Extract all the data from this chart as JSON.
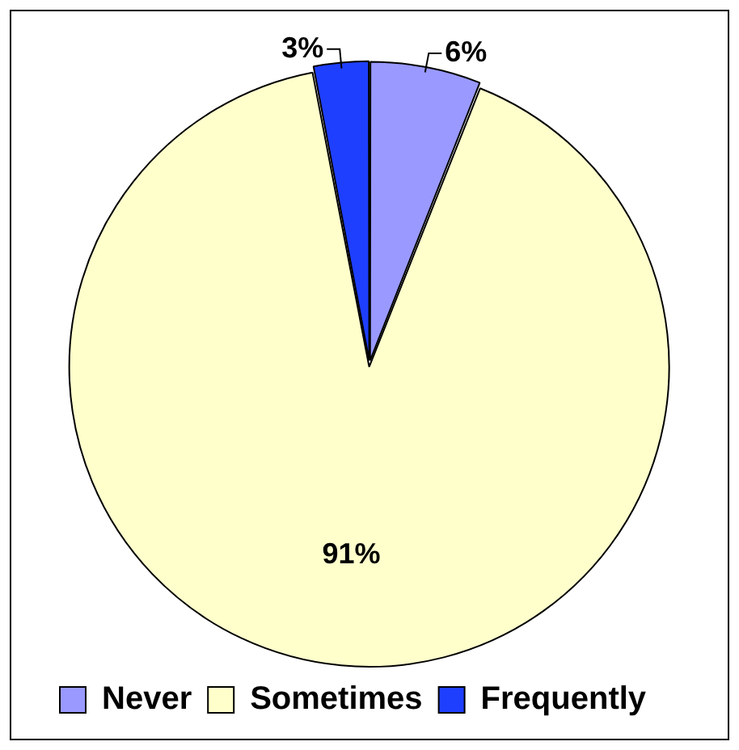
{
  "chart_data": {
    "type": "pie",
    "categories": [
      "Never",
      "Sometimes",
      "Frequently"
    ],
    "values": [
      6,
      91,
      3
    ],
    "colors": [
      "#9999ff",
      "#ffffcc",
      "#1f3fff"
    ],
    "value_labels": [
      "6%",
      "91%",
      "3%"
    ],
    "legend": "bottom left"
  }
}
